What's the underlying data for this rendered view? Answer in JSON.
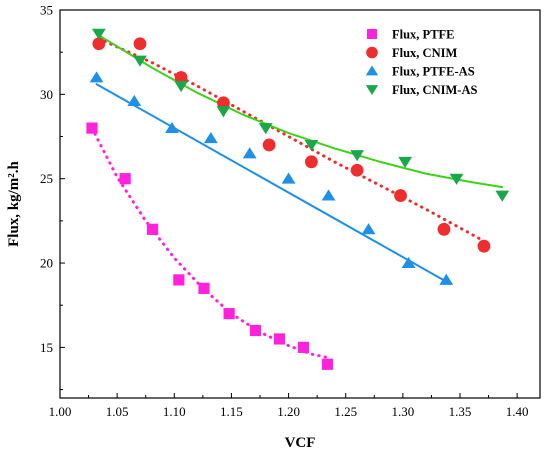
{
  "chart_data": {
    "type": "scatter",
    "xlabel": "VCF",
    "ylabel": "Flux, kg/m².h",
    "xlim": [
      1.0,
      1.42
    ],
    "ylim": [
      12,
      35
    ],
    "xticks": [
      1.0,
      1.05,
      1.1,
      1.15,
      1.2,
      1.25,
      1.3,
      1.35,
      1.4
    ],
    "xtick_labels": [
      "1.00",
      "1.05",
      "1.10",
      "1.15",
      "1.20",
      "1.25",
      "1.30",
      "1.35",
      "1.40"
    ],
    "yticks": [
      15,
      20,
      25,
      30,
      35
    ],
    "ytick_labels": [
      "15",
      "20",
      "25",
      "30",
      "35"
    ],
    "legend_position": "top-right",
    "grid": false,
    "series": [
      {
        "name": "Flux, PTFE",
        "marker": "square",
        "color": "#ff22dd",
        "fit_style": "dotted",
        "points": [
          [
            1.028,
            28.0
          ],
          [
            1.057,
            25.0
          ],
          [
            1.081,
            22.0
          ],
          [
            1.104,
            19.0
          ],
          [
            1.126,
            18.5
          ],
          [
            1.148,
            17.0
          ],
          [
            1.171,
            16.0
          ],
          [
            1.192,
            15.5
          ],
          [
            1.213,
            15.0
          ],
          [
            1.234,
            14.0
          ]
        ],
        "fit": [
          [
            1.028,
            28.0
          ],
          [
            1.05,
            25.1
          ],
          [
            1.075,
            22.5
          ],
          [
            1.1,
            20.3
          ],
          [
            1.125,
            18.5
          ],
          [
            1.15,
            17.0
          ],
          [
            1.175,
            15.9
          ],
          [
            1.2,
            15.1
          ],
          [
            1.22,
            14.6
          ],
          [
            1.234,
            14.4
          ]
        ]
      },
      {
        "name": "Flux, CNIM",
        "marker": "circle",
        "color": "#ee2e2e",
        "fit_style": "dotted",
        "points": [
          [
            1.034,
            33.0
          ],
          [
            1.07,
            33.0
          ],
          [
            1.106,
            31.0
          ],
          [
            1.143,
            29.5
          ],
          [
            1.183,
            27.0
          ],
          [
            1.22,
            26.0
          ],
          [
            1.26,
            25.5
          ],
          [
            1.298,
            24.0
          ],
          [
            1.336,
            22.0
          ],
          [
            1.371,
            21.0
          ]
        ],
        "fit": [
          [
            1.034,
            33.3
          ],
          [
            1.08,
            31.9
          ],
          [
            1.12,
            30.5
          ],
          [
            1.16,
            29.0
          ],
          [
            1.2,
            27.5
          ],
          [
            1.24,
            26.0
          ],
          [
            1.28,
            24.6
          ],
          [
            1.32,
            23.2
          ],
          [
            1.371,
            21.3
          ]
        ]
      },
      {
        "name": "Flux, PTFE-AS",
        "marker": "triangle-up",
        "color": "#1e90e8",
        "fit_style": "solid",
        "points": [
          [
            1.032,
            31.0
          ],
          [
            1.065,
            29.6
          ],
          [
            1.098,
            28.0
          ],
          [
            1.132,
            27.4
          ],
          [
            1.166,
            26.5
          ],
          [
            1.2,
            25.0
          ],
          [
            1.235,
            24.0
          ],
          [
            1.27,
            22.0
          ],
          [
            1.305,
            20.0
          ],
          [
            1.338,
            19.0
          ]
        ],
        "fit": [
          [
            1.032,
            30.6
          ],
          [
            1.338,
            18.9
          ]
        ]
      },
      {
        "name": "Flux, CNIM-AS",
        "marker": "triangle-down",
        "color": "#19a84a",
        "fit_style": "solid",
        "fit_color": "#3ed21a",
        "points": [
          [
            1.034,
            33.6
          ],
          [
            1.07,
            32.0
          ],
          [
            1.106,
            30.5
          ],
          [
            1.143,
            29.0
          ],
          [
            1.18,
            28.0
          ],
          [
            1.22,
            27.0
          ],
          [
            1.26,
            26.4
          ],
          [
            1.302,
            26.0
          ],
          [
            1.347,
            25.0
          ],
          [
            1.387,
            24.0
          ]
        ],
        "fit": [
          [
            1.034,
            33.5
          ],
          [
            1.08,
            31.6
          ],
          [
            1.12,
            30.1
          ],
          [
            1.16,
            28.8
          ],
          [
            1.2,
            27.7
          ],
          [
            1.24,
            26.8
          ],
          [
            1.28,
            26.0
          ],
          [
            1.32,
            25.3
          ],
          [
            1.36,
            24.8
          ],
          [
            1.387,
            24.5
          ]
        ]
      }
    ]
  }
}
